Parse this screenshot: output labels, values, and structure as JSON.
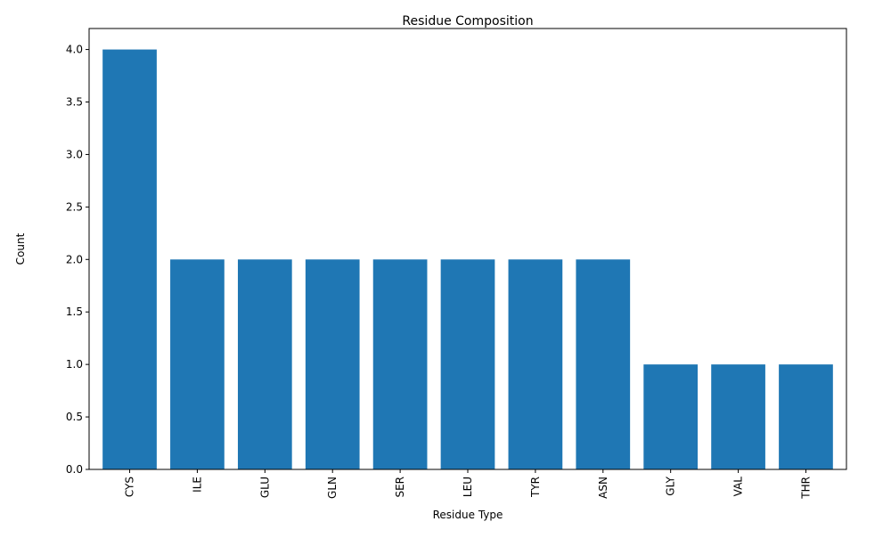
{
  "chart_data": {
    "type": "bar",
    "title": "Residue Composition",
    "xlabel": "Residue Type",
    "ylabel": "Count",
    "categories": [
      "CYS",
      "ILE",
      "GLU",
      "GLN",
      "SER",
      "LEU",
      "TYR",
      "ASN",
      "GLY",
      "VAL",
      "THR"
    ],
    "values": [
      4,
      2,
      2,
      2,
      2,
      2,
      2,
      2,
      1,
      1,
      1
    ],
    "ylim": [
      0,
      4.2
    ],
    "yticks": [
      "0.0",
      "0.5",
      "1.0",
      "1.5",
      "2.0",
      "2.5",
      "3.0",
      "3.5",
      "4.0"
    ],
    "bar_color": "#1f77b4",
    "grid": false,
    "legend": false
  }
}
